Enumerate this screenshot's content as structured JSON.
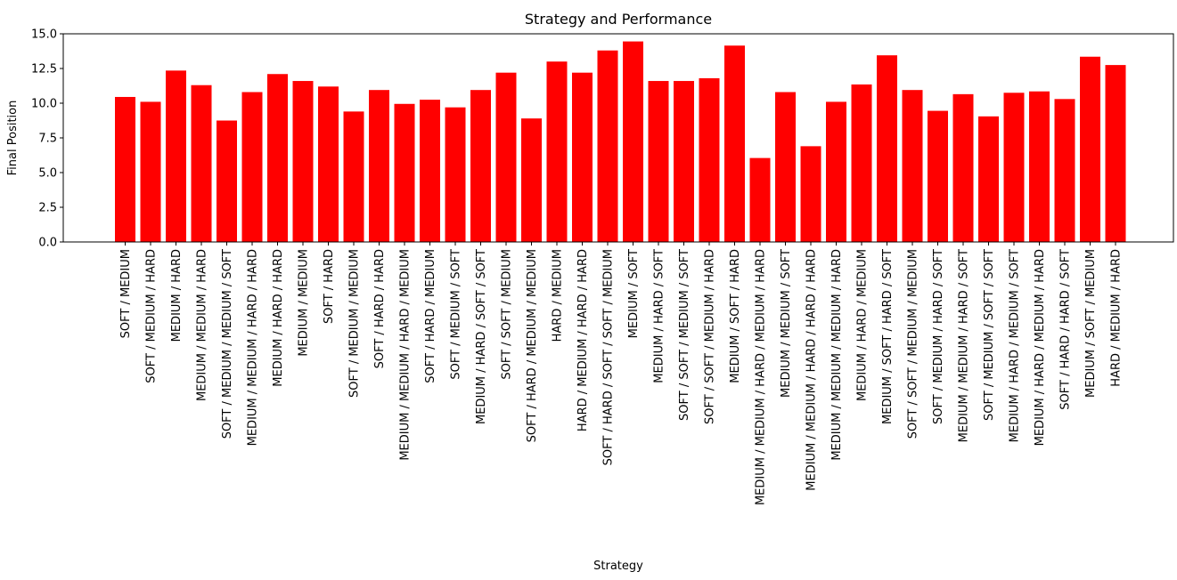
{
  "chart_data": {
    "type": "bar",
    "title": "Strategy and Performance",
    "xlabel": "Strategy",
    "ylabel": "Final Position",
    "ylim": [
      0,
      15
    ],
    "yticks": [
      0.0,
      2.5,
      5.0,
      7.5,
      10.0,
      12.5,
      15.0
    ],
    "ytick_labels": [
      "0.0",
      "2.5",
      "5.0",
      "7.5",
      "10.0",
      "12.5",
      "15.0"
    ],
    "grid": false,
    "bar_color": "#ff0000",
    "categories": [
      "SOFT / MEDIUM",
      "SOFT / MEDIUM / HARD",
      "MEDIUM / HARD",
      "MEDIUM / MEDIUM / HARD",
      "SOFT / MEDIUM / MEDIUM / SOFT",
      "MEDIUM / MEDIUM / HARD / HARD",
      "MEDIUM / HARD / HARD",
      "MEDIUM / MEDIUM",
      "SOFT / HARD",
      "SOFT / MEDIUM / MEDIUM",
      "SOFT / HARD / HARD",
      "MEDIUM / MEDIUM / HARD / MEDIUM",
      "SOFT / HARD / MEDIUM",
      "SOFT / MEDIUM / SOFT",
      "MEDIUM / HARD / SOFT / SOFT",
      "SOFT / SOFT / MEDIUM",
      "SOFT / HARD / MEDIUM / MEDIUM",
      "HARD / MEDIUM",
      "HARD / MEDIUM / HARD / HARD",
      "SOFT / HARD / SOFT / SOFT / MEDIUM",
      "MEDIUM / SOFT",
      "MEDIUM / HARD / SOFT",
      "SOFT / SOFT / MEDIUM / SOFT",
      "SOFT / SOFT / MEDIUM / HARD",
      "MEDIUM / SOFT / HARD",
      "MEDIUM / MEDIUM / HARD / MEDIUM / HARD",
      "MEDIUM / MEDIUM / SOFT",
      "MEDIUM / MEDIUM / HARD / HARD / HARD",
      "MEDIUM / MEDIUM / MEDIUM / HARD",
      "MEDIUM / HARD / MEDIUM",
      "MEDIUM / SOFT / HARD / SOFT",
      "SOFT / SOFT / MEDIUM / MEDIUM",
      "SOFT / MEDIUM / HARD / SOFT",
      "MEDIUM / MEDIUM / HARD / SOFT",
      "SOFT / MEDIUM / SOFT / SOFT",
      "MEDIUM / HARD / MEDIUM / SOFT",
      "MEDIUM / HARD / MEDIUM / HARD",
      "SOFT / HARD / HARD / SOFT",
      "MEDIUM / SOFT / MEDIUM",
      "HARD / MEDIUM / HARD"
    ],
    "values": [
      10.45,
      10.1,
      12.35,
      11.3,
      8.75,
      10.8,
      12.1,
      11.6,
      11.2,
      9.4,
      10.95,
      9.95,
      10.25,
      9.7,
      10.95,
      12.2,
      8.9,
      13.0,
      12.2,
      13.8,
      14.45,
      11.6,
      11.6,
      11.8,
      14.15,
      6.05,
      10.8,
      6.9,
      10.1,
      11.35,
      13.45,
      10.95,
      9.45,
      10.65,
      9.05,
      10.75,
      10.85,
      10.3,
      13.35,
      12.75
    ]
  }
}
